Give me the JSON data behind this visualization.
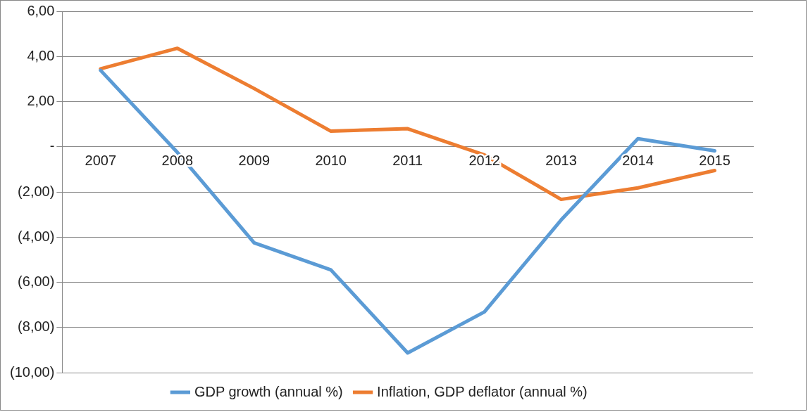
{
  "chart_data": {
    "type": "line",
    "categories": [
      "2007",
      "2008",
      "2009",
      "2010",
      "2011",
      "2012",
      "2013",
      "2014",
      "2015"
    ],
    "series": [
      {
        "name": "GDP growth (annual %)",
        "color": "#5b9bd5",
        "values": [
          3.38,
          -0.25,
          -4.25,
          -5.45,
          -9.13,
          -7.31,
          -3.24,
          0.36,
          -0.18
        ]
      },
      {
        "name": "Inflation, GDP deflator (annual %)",
        "color": "#ed7d31",
        "values": [
          3.45,
          4.36,
          2.58,
          0.69,
          0.8,
          -0.36,
          -2.33,
          -1.82,
          -1.05
        ]
      }
    ],
    "ylim": [
      -10,
      6
    ],
    "yticks": [
      {
        "value": 6,
        "label": "6,00"
      },
      {
        "value": 4,
        "label": "4,00"
      },
      {
        "value": 2,
        "label": "2,00"
      },
      {
        "value": 0,
        "label": "-"
      },
      {
        "value": -2,
        "label": "(2,00)"
      },
      {
        "value": -4,
        "label": "(4,00)"
      },
      {
        "value": -6,
        "label": "(6,00)"
      },
      {
        "value": -8,
        "label": "(8,00)"
      },
      {
        "value": -10,
        "label": "(10,00)"
      }
    ],
    "grid": "y",
    "legend": "bottom",
    "marker": "none",
    "line_style": "solid"
  }
}
